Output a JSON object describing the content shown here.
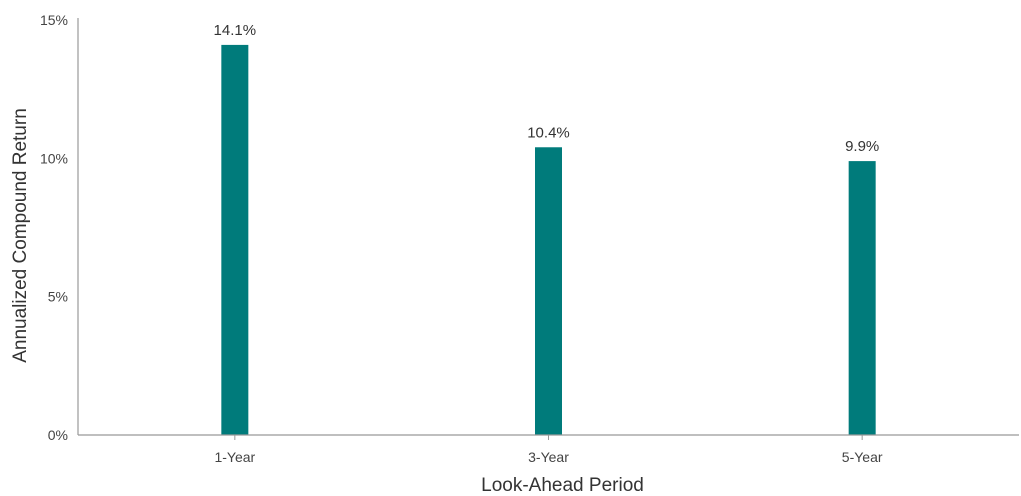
{
  "chart_data": {
    "type": "bar",
    "categories": [
      "1-Year",
      "3-Year",
      "5-Year"
    ],
    "values": [
      14.1,
      10.4,
      9.9
    ],
    "data_labels": [
      "14.1%",
      "10.4%",
      "9.9%"
    ],
    "title": "",
    "xlabel": "Look-Ahead Period",
    "ylabel": "Annualized Compound Return",
    "ylim": [
      0,
      15
    ],
    "yticks": [
      0,
      5,
      10,
      15
    ],
    "ytick_labels": [
      "0%",
      "5%",
      "10%",
      "15%"
    ],
    "grid": false,
    "legend": "none",
    "bar_color": "#007b7b",
    "axis_color": "#999999"
  }
}
